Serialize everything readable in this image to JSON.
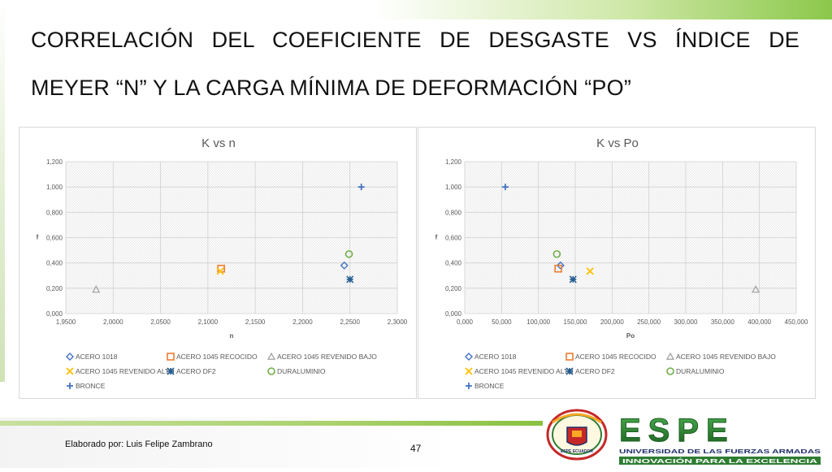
{
  "slide": {
    "title": "CORRELACIÓN DEL COEFICIENTE DE DESGASTE VS ÍNDICE DE MEYER “N” Y LA CARGA MÍNIMA DE DEFORMACIÓN “PO”",
    "author": "Elaborado por: Luis Felipe Zambrano",
    "page_number": "47"
  },
  "logo": {
    "wordmark": "ESPE",
    "line1": "UNIVERSIDAD DE LAS FUERZAS ARMADAS",
    "line2": "INNOVACIÓN PARA LA EXCELENCIA",
    "emblem_caption": "ESPE ECUADOR"
  },
  "colors": {
    "blue": "#4472c4",
    "orange": "#ed7d31",
    "gray": "#a5a5a5",
    "gold": "#ffc000",
    "navy": "#255e91",
    "green": "#70ad47",
    "accent_green": "#8cc84b",
    "logo_green": "#2e7d32",
    "logo_navy": "#1f2f6b"
  },
  "chart_data": [
    {
      "type": "scatter",
      "title": "K vs n",
      "xlabel": "n",
      "ylabel": "f",
      "xlim": [
        1.95,
        2.3
      ],
      "ylim": [
        0,
        1.2
      ],
      "xticks": [
        "1,9500",
        "2,0000",
        "2,0500",
        "2,1000",
        "2,1500",
        "2,2000",
        "2,2500",
        "2,3000"
      ],
      "yticks": [
        "0,000",
        "0,200",
        "0,400",
        "0,600",
        "0,800",
        "1,000",
        "1,200"
      ],
      "grid": true,
      "legend_position": "bottom",
      "series": [
        {
          "name": "ACERO 1018",
          "marker": "diamond",
          "color": "#4472c4",
          "points": [
            [
              2.244,
              0.38
            ]
          ]
        },
        {
          "name": "ACERO 1045 RECOCIDO",
          "marker": "square",
          "color": "#ed7d31",
          "points": [
            [
              2.114,
              0.355
            ]
          ]
        },
        {
          "name": "ACERO 1045 REVENIDO BAJO",
          "marker": "triangle",
          "color": "#a5a5a5",
          "points": [
            [
              1.982,
              0.19
            ]
          ]
        },
        {
          "name": "ACERO 1045 REVENIDO ALTO",
          "marker": "x",
          "color": "#ffc000",
          "points": [
            [
              2.113,
              0.335
            ]
          ]
        },
        {
          "name": "ACERO DF2",
          "marker": "star",
          "color": "#255e91",
          "points": [
            [
              2.25,
              0.27
            ]
          ]
        },
        {
          "name": "DURALUMINIO",
          "marker": "circle",
          "color": "#70ad47",
          "points": [
            [
              2.249,
              0.47
            ]
          ]
        },
        {
          "name": "BRONCE",
          "marker": "plus",
          "color": "#4472c4",
          "points": [
            [
              2.262,
              1.0
            ]
          ]
        }
      ]
    },
    {
      "type": "scatter",
      "title": "K vs Po",
      "xlabel": "Po",
      "ylabel": "f",
      "xlim": [
        0,
        450
      ],
      "ylim": [
        0,
        1.2
      ],
      "xticks": [
        "0,000",
        "50,000",
        "100,000",
        "150,000",
        "200,000",
        "250,000",
        "300,000",
        "350,000",
        "400,000",
        "450,000"
      ],
      "yticks": [
        "0,000",
        "0,200",
        "0,400",
        "0,600",
        "0,800",
        "1,000",
        "1,200"
      ],
      "grid": true,
      "legend_position": "bottom",
      "series": [
        {
          "name": "ACERO 1018",
          "marker": "diamond",
          "color": "#4472c4",
          "points": [
            [
              130,
              0.38
            ]
          ]
        },
        {
          "name": "ACERO 1045 RECOCIDO",
          "marker": "square",
          "color": "#ed7d31",
          "points": [
            [
              127,
              0.355
            ]
          ]
        },
        {
          "name": "ACERO 1045 REVENIDO BAJO",
          "marker": "triangle",
          "color": "#a5a5a5",
          "points": [
            [
              395,
              0.19
            ]
          ]
        },
        {
          "name": "ACERO 1045 REVENIDO ALTO",
          "marker": "x",
          "color": "#ffc000",
          "points": [
            [
              170,
              0.335
            ]
          ]
        },
        {
          "name": "ACERO DF2",
          "marker": "star",
          "color": "#255e91",
          "points": [
            [
              147,
              0.27
            ]
          ]
        },
        {
          "name": "DURALUMINIO",
          "marker": "circle",
          "color": "#70ad47",
          "points": [
            [
              125,
              0.47
            ]
          ]
        },
        {
          "name": "BRONCE",
          "marker": "plus",
          "color": "#4472c4",
          "points": [
            [
              55,
              1.0
            ]
          ]
        }
      ]
    }
  ]
}
